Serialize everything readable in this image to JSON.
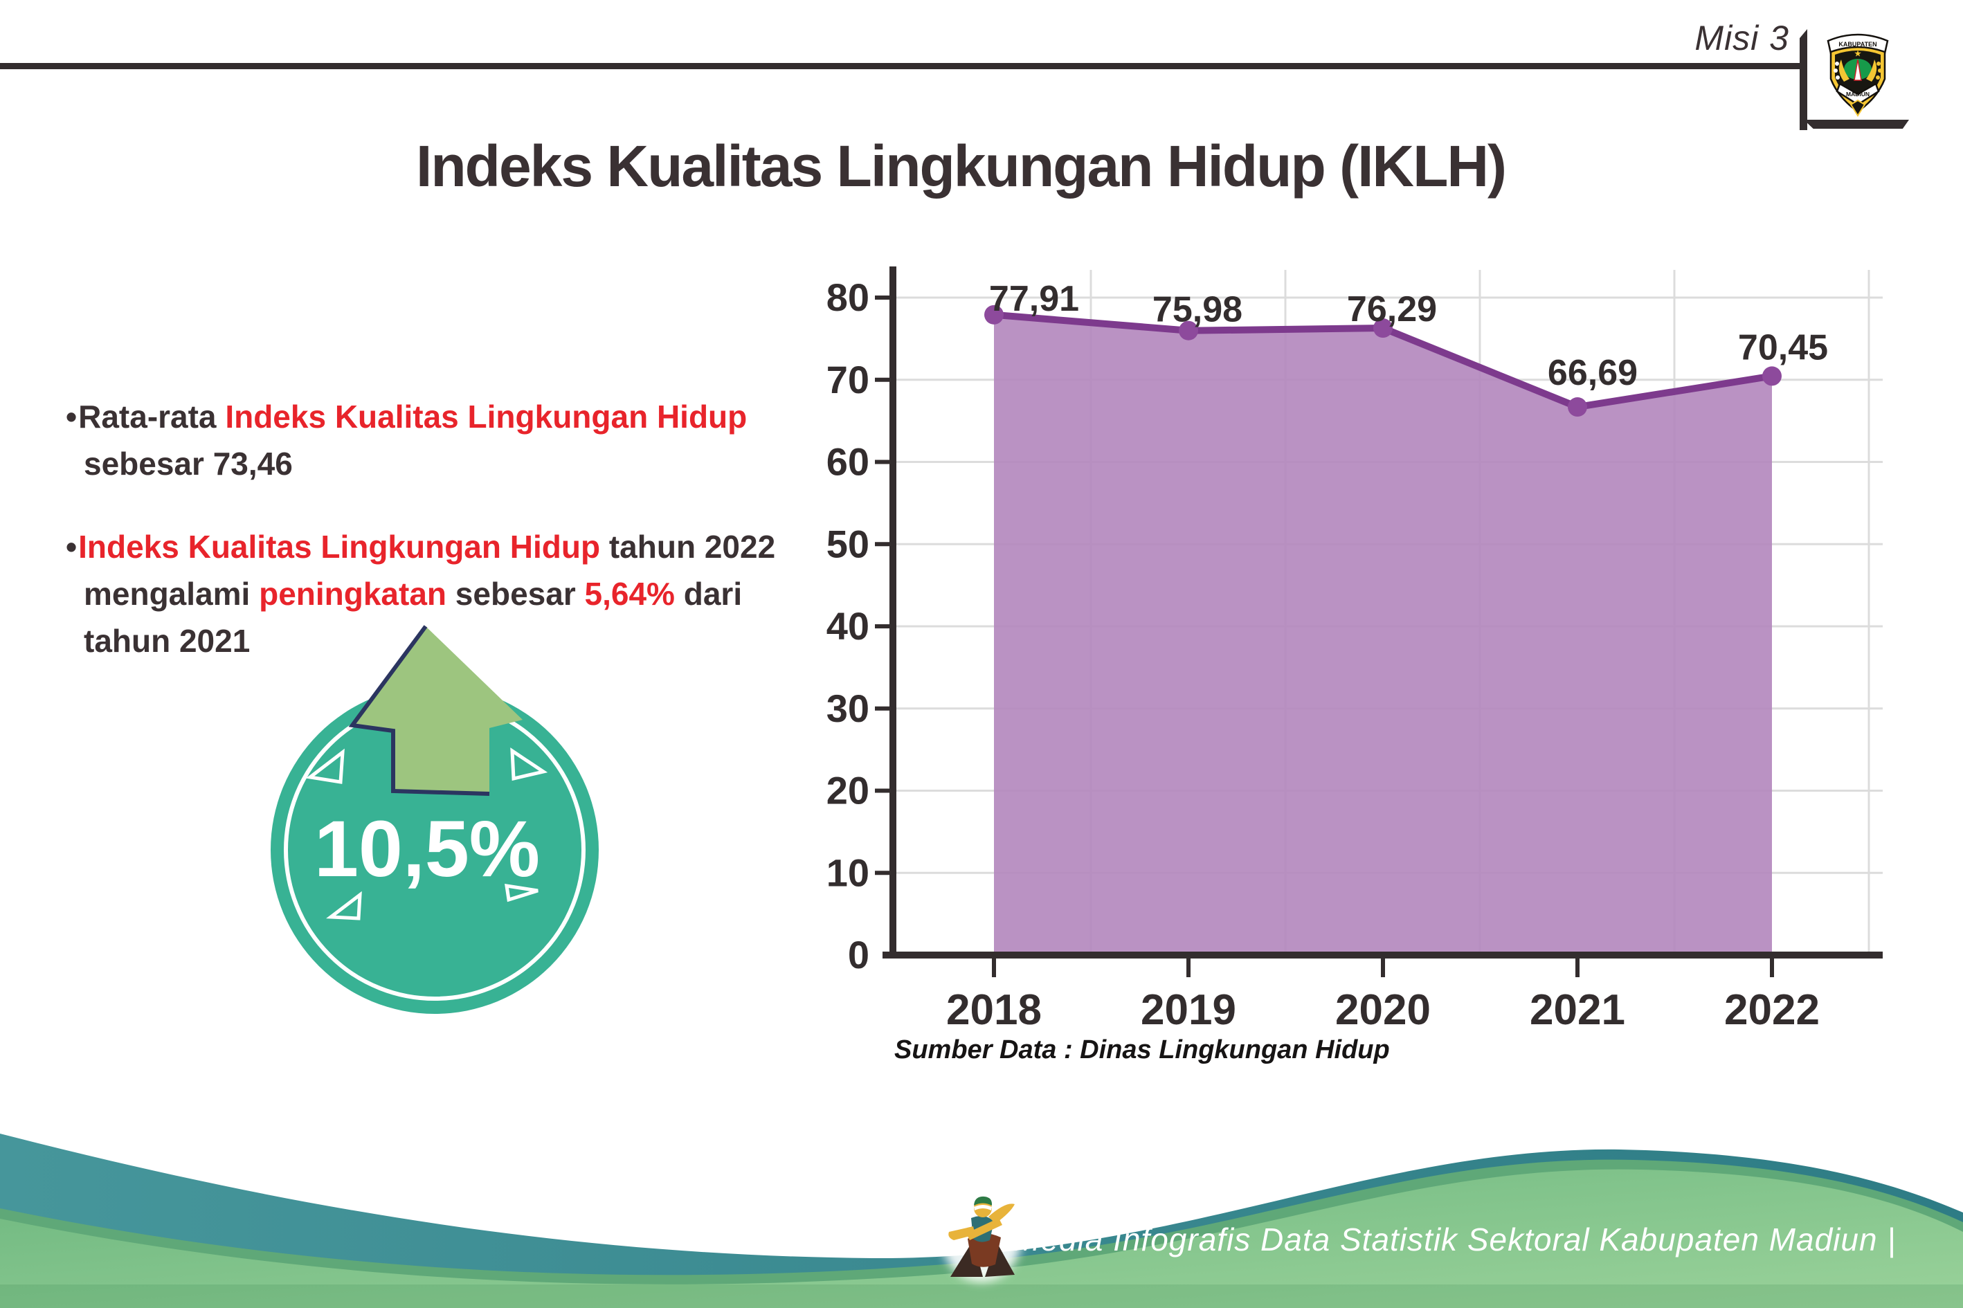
{
  "header": {
    "mission_label": "Misi 3",
    "logo": {
      "top_text": "KABUPATEN",
      "bottom_text": "MADIUN"
    }
  },
  "title": "Indeks Kualitas Lingkungan Hidup (IKLH)",
  "bullets": {
    "bullet_char": "•",
    "items": [
      {
        "lines": [
          [
            {
              "t": "Rata-rata ",
              "c": "dark"
            },
            {
              "t": "Indeks Kualitas Lingkungan Hidup",
              "c": "red"
            }
          ],
          [
            {
              "t": "sebesar 73,46",
              "c": "dark"
            }
          ]
        ]
      },
      {
        "lines": [
          [
            {
              "t": "Indeks Kualitas Lingkungan Hidup",
              "c": "red"
            },
            {
              "t": " tahun 2022",
              "c": "dark"
            }
          ],
          [
            {
              "t": "mengalami ",
              "c": "dark"
            },
            {
              "t": "peningkatan",
              "c": "red"
            },
            {
              "t": " sebesar ",
              "c": "dark"
            },
            {
              "t": "5,64%",
              "c": "red"
            },
            {
              "t": " dari",
              "c": "dark"
            }
          ],
          [
            {
              "t": "tahun 2021",
              "c": "dark"
            }
          ]
        ]
      }
    ]
  },
  "badge": {
    "value": "10,5%",
    "direction": "up"
  },
  "chart_data": {
    "type": "area",
    "title": "Indeks Kualitas Lingkungan Hidup (IKLH)",
    "categories": [
      "2018",
      "2019",
      "2020",
      "2021",
      "2022"
    ],
    "values": [
      77.91,
      75.98,
      76.29,
      66.69,
      70.45
    ],
    "value_labels": [
      "77,91",
      "75,98",
      "76,29",
      "66,69",
      "70,45"
    ],
    "xlabel": "",
    "ylabel": "",
    "ylim": [
      0,
      80
    ],
    "yticks": [
      0,
      10,
      20,
      30,
      40,
      50,
      60,
      70,
      80
    ],
    "grid": true,
    "legend": "none",
    "source": "Sumber Data : Dinas Lingkungan Hidup",
    "colors": {
      "area": "#b286bc",
      "line": "#7d3a8d",
      "marker": "#8d4a9c",
      "label": "#332d2e",
      "grid": "#dcdcdc",
      "axis": "#332d2e"
    }
  },
  "footer": {
    "text": "Media Infografis Data Statistik Sektoral Kabupaten Madiun |"
  }
}
